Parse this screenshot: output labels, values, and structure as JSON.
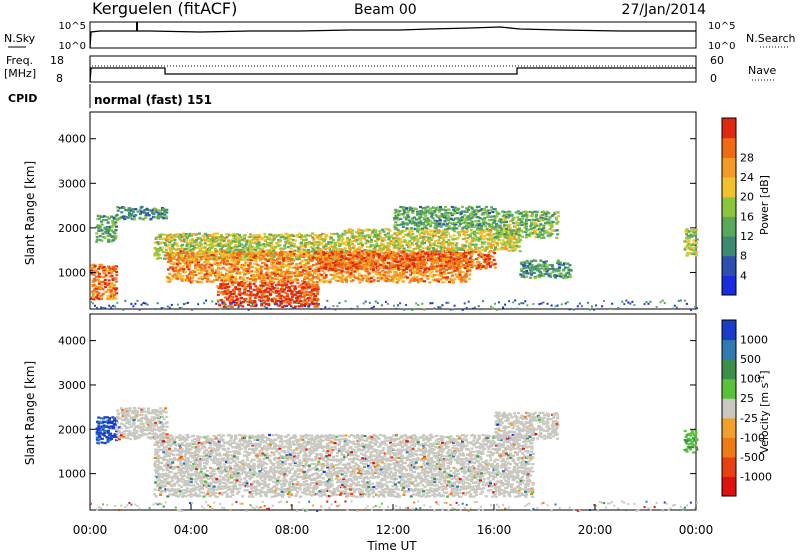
{
  "header": {
    "station": "Kerguelen (fitACF)",
    "beam": "Beam 00",
    "date": "27/Jan/2014"
  },
  "panel1": {
    "left_label": "N.Sky",
    "right_label": "N.Search",
    "left_ticks": [
      "10^5",
      "10^0"
    ],
    "right_ticks": [
      "10^5",
      "10^0"
    ]
  },
  "panel2": {
    "left_label_1": "Freq.",
    "left_label_2": "[MHz]",
    "right_label": "Nave",
    "left_ticks": [
      "18",
      "8"
    ],
    "right_ticks": [
      "60",
      "0"
    ]
  },
  "cpid": {
    "label": "CPID",
    "value": "normal (fast) 151"
  },
  "chart_data": [
    {
      "type": "heatmap",
      "name": "Power",
      "ylabel": "Slant Range [km]",
      "xlabel": "Time UT",
      "xlim": [
        0,
        24
      ],
      "ylim": [
        180,
        4600
      ],
      "y_ticks": [
        "1000",
        "2000",
        "3000",
        "4000"
      ],
      "colorbar": {
        "label": "Power [dB]",
        "ticks": [
          "4",
          "8",
          "12",
          "16",
          "20",
          "24",
          "28"
        ],
        "colors": [
          "#1a2ce0",
          "#2d4fb0",
          "#3d8a72",
          "#5aa85a",
          "#8cc63f",
          "#f2c22e",
          "#f59a23",
          "#f06a14",
          "#e02a10"
        ]
      },
      "regions": [
        {
          "t": [
            0.0,
            1.0
          ],
          "r": [
            400,
            1200
          ],
          "level": 24
        },
        {
          "t": [
            0.2,
            1.0
          ],
          "r": [
            1700,
            2300
          ],
          "level": 10
        },
        {
          "t": [
            1.0,
            3.0
          ],
          "r": [
            2200,
            2500
          ],
          "level": 8
        },
        {
          "t": [
            2.5,
            10.0
          ],
          "r": [
            1300,
            1900
          ],
          "level": 15
        },
        {
          "t": [
            3.0,
            15.0
          ],
          "r": [
            800,
            1500
          ],
          "level": 22
        },
        {
          "t": [
            9.0,
            16.0
          ],
          "r": [
            1100,
            1500
          ],
          "level": 25
        },
        {
          "t": [
            5.0,
            9.0
          ],
          "r": [
            250,
            800
          ],
          "level": 27
        },
        {
          "t": [
            10.0,
            17.0
          ],
          "r": [
            1500,
            2000
          ],
          "level": 16
        },
        {
          "t": [
            12.0,
            16.0
          ],
          "r": [
            2000,
            2500
          ],
          "level": 10
        },
        {
          "t": [
            16.0,
            18.5
          ],
          "r": [
            1800,
            2400
          ],
          "level": 12
        },
        {
          "t": [
            17.0,
            19.0
          ],
          "r": [
            900,
            1300
          ],
          "level": 9
        },
        {
          "t": [
            23.5,
            24.0
          ],
          "r": [
            1400,
            2000
          ],
          "level": 14
        }
      ]
    },
    {
      "type": "heatmap",
      "name": "Velocity",
      "ylabel": "Slant Range [km]",
      "xlabel": "Time UT",
      "xlim": [
        0,
        24
      ],
      "ylim": [
        180,
        4600
      ],
      "x_ticks": [
        "00:00",
        "04:00",
        "08:00",
        "12:00",
        "16:00",
        "20:00",
        "00:00"
      ],
      "y_ticks": [
        "1000",
        "2000",
        "3000",
        "4000"
      ],
      "colorbar": {
        "label": "Velocity [m s",
        "label_sup": "-1",
        "label_end": "]",
        "ticks": [
          "1000",
          "500",
          "100",
          "25",
          "-25",
          "-100",
          "-500",
          "-1000"
        ],
        "colors": [
          "#1a3cc8",
          "#2f7ab0",
          "#3b8f4a",
          "#59c23a",
          "#c8c8c0",
          "#f2a02a",
          "#f07a14",
          "#e84010",
          "#e01010"
        ]
      },
      "regions": [
        {
          "t": [
            0.2,
            1.0
          ],
          "r": [
            1700,
            2300
          ],
          "level": "blue"
        },
        {
          "t": [
            1.0,
            3.0
          ],
          "r": [
            1800,
            2500
          ],
          "level": "ground"
        },
        {
          "t": [
            2.5,
            17.5
          ],
          "r": [
            500,
            1900
          ],
          "level": "ground"
        },
        {
          "t": [
            16.0,
            18.5
          ],
          "r": [
            1800,
            2400
          ],
          "level": "ground"
        },
        {
          "t": [
            23.5,
            24.0
          ],
          "r": [
            1500,
            2000
          ],
          "level": "green"
        }
      ]
    }
  ]
}
